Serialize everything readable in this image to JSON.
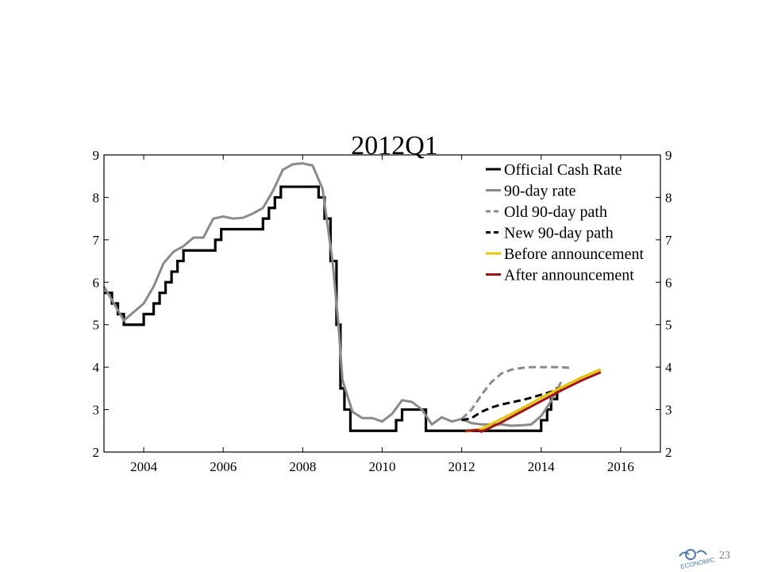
{
  "page": {
    "page_number": "23",
    "logo_text": "ECONOMIC"
  },
  "chart_data": {
    "type": "line",
    "title": "2012Q1",
    "xlim": [
      2003,
      2017
    ],
    "ylim": [
      2,
      9
    ],
    "xticks": [
      2004,
      2006,
      2008,
      2010,
      2012,
      2014,
      2016
    ],
    "yticks": [
      2,
      3,
      4,
      5,
      6,
      7,
      8,
      9
    ],
    "legend_position": "top-right",
    "grid": false,
    "series": [
      {
        "name": "Official Cash Rate",
        "style": "step",
        "color": "#000000",
        "dash": "solid",
        "x": [
          2003.0,
          2003.2,
          2003.35,
          2003.5,
          2004.0,
          2004.25,
          2004.4,
          2004.55,
          2004.7,
          2004.85,
          2005.0,
          2005.3,
          2005.8,
          2005.95,
          2007.0,
          2007.15,
          2007.3,
          2007.45,
          2007.6,
          2008.4,
          2008.55,
          2008.7,
          2008.85,
          2008.95,
          2009.05,
          2009.2,
          2010.35,
          2010.5,
          2010.8,
          2011.1,
          2014.0,
          2014.15,
          2014.25,
          2014.4
        ],
        "y": [
          5.75,
          5.5,
          5.25,
          5.0,
          5.25,
          5.5,
          5.75,
          6.0,
          6.25,
          6.5,
          6.75,
          6.75,
          7.0,
          7.25,
          7.5,
          7.75,
          8.0,
          8.25,
          8.25,
          8.0,
          7.5,
          6.5,
          5.0,
          3.5,
          3.0,
          2.5,
          2.75,
          3.0,
          3.0,
          2.5,
          2.75,
          3.0,
          3.25,
          3.5
        ]
      },
      {
        "name": "90-day rate",
        "style": "line",
        "color": "#8a8a8a",
        "dash": "solid",
        "x": [
          2003.0,
          2003.5,
          2004.0,
          2004.25,
          2004.5,
          2004.75,
          2005.0,
          2005.25,
          2005.5,
          2005.75,
          2006.0,
          2006.25,
          2006.5,
          2006.75,
          2007.0,
          2007.25,
          2007.5,
          2007.75,
          2008.0,
          2008.25,
          2008.5,
          2008.75,
          2008.9,
          2009.0,
          2009.25,
          2009.5,
          2009.75,
          2010.0,
          2010.25,
          2010.5,
          2010.75,
          2011.0,
          2011.25,
          2011.5,
          2011.75,
          2012.0,
          2012.25,
          2012.5,
          2012.75,
          2013.0,
          2013.25,
          2013.5,
          2013.75,
          2014.0,
          2014.25,
          2014.5
        ],
        "y": [
          5.9,
          5.1,
          5.5,
          5.9,
          6.45,
          6.72,
          6.85,
          7.05,
          7.05,
          7.5,
          7.55,
          7.5,
          7.52,
          7.62,
          7.75,
          8.15,
          8.65,
          8.78,
          8.8,
          8.75,
          8.2,
          6.5,
          5.0,
          3.7,
          2.95,
          2.8,
          2.8,
          2.72,
          2.9,
          3.22,
          3.18,
          3.0,
          2.65,
          2.82,
          2.72,
          2.78,
          2.68,
          2.65,
          2.65,
          2.65,
          2.62,
          2.63,
          2.65,
          2.85,
          3.2,
          3.65
        ]
      },
      {
        "name": "Old 90-day path",
        "style": "line",
        "color": "#8a8a8a",
        "dash": "dashed",
        "x": [
          2012.0,
          2012.25,
          2012.5,
          2012.75,
          2013.0,
          2013.25,
          2013.5,
          2013.75,
          2014.0,
          2014.25,
          2014.5,
          2014.75
        ],
        "y": [
          2.78,
          3.0,
          3.35,
          3.65,
          3.85,
          3.94,
          3.98,
          4.0,
          4.0,
          4.0,
          4.0,
          3.98
        ]
      },
      {
        "name": "New 90-day path",
        "style": "line",
        "color": "#000000",
        "dash": "dashed",
        "x": [
          2012.0,
          2012.25,
          2012.5,
          2012.75,
          2013.0,
          2013.25,
          2013.5,
          2013.75,
          2014.0,
          2014.25,
          2014.4
        ],
        "y": [
          2.75,
          2.8,
          2.95,
          3.05,
          3.12,
          3.17,
          3.22,
          3.28,
          3.35,
          3.42,
          3.45
        ]
      },
      {
        "name": "Before announcement",
        "style": "line",
        "color": "#e8c400",
        "dash": "solid",
        "x": [
          2012.1,
          2012.5,
          2013.0,
          2013.5,
          2014.0,
          2014.5,
          2015.0,
          2015.5
        ],
        "y": [
          2.48,
          2.55,
          2.78,
          3.02,
          3.28,
          3.52,
          3.75,
          3.95
        ]
      },
      {
        "name": "After announcement",
        "style": "line",
        "color": "#a01414",
        "dash": "solid",
        "x": [
          2012.1,
          2012.4,
          2012.5,
          2013.0,
          2013.5,
          2014.0,
          2014.5,
          2015.0,
          2015.5
        ],
        "y": [
          2.5,
          2.52,
          2.48,
          2.7,
          2.95,
          3.2,
          3.45,
          3.68,
          3.88
        ]
      }
    ]
  }
}
